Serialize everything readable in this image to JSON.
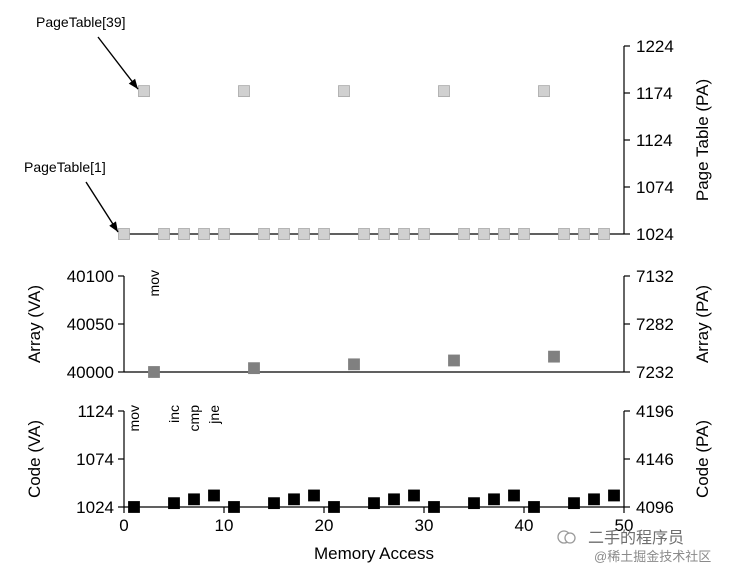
{
  "watermark": {
    "line1": "二手的程序员",
    "line2": "@稀土掘金技术社区"
  },
  "chart_data": {
    "type": "scatter",
    "xlabel": "Memory Access",
    "xlim": [
      0,
      50
    ],
    "xticks": [
      0,
      10,
      20,
      30,
      40,
      50
    ],
    "panels": [
      {
        "id": "page-table",
        "left_label": "",
        "right_label": "Page Table (PA)",
        "right_ylim": [
          1024,
          1224
        ],
        "right_ticks": [
          1024,
          1074,
          1124,
          1174,
          1224
        ],
        "marker_color": "#d0d0d0",
        "series": [
          {
            "x": [
              0,
              4,
              6,
              8,
              10,
              14,
              16,
              18,
              20,
              24,
              26,
              28,
              30,
              34,
              36,
              38,
              40,
              44,
              46,
              48
            ],
            "y": [
              1024,
              1024,
              1024,
              1024,
              1024,
              1024,
              1024,
              1024,
              1024,
              1024,
              1024,
              1024,
              1024,
              1024,
              1024,
              1024,
              1024,
              1024,
              1024,
              1024
            ]
          },
          {
            "x": [
              2,
              12,
              22,
              32,
              42
            ],
            "y": [
              1176,
              1176,
              1176,
              1176,
              1176
            ]
          }
        ],
        "annotations": [
          {
            "text": "PageTable[39]",
            "points_to": [
              2,
              1176
            ]
          },
          {
            "text": "PageTable[1]",
            "points_to": [
              0,
              1024
            ]
          }
        ]
      },
      {
        "id": "array",
        "left_label": "Array (VA)",
        "left_ylim": [
          40000,
          40100
        ],
        "left_ticks": [
          40000,
          40050,
          40100
        ],
        "right_label": "Array (PA)",
        "right_tick_labels": [
          "7232",
          "7282",
          "7132"
        ],
        "marker_color": "#808080",
        "series": [
          {
            "x": [
              3,
              13,
              23,
              33,
              43
            ],
            "y": [
              40000,
              40004,
              40008,
              40012,
              40016
            ]
          }
        ],
        "instructions": [
          {
            "text": "mov",
            "x": 3
          }
        ]
      },
      {
        "id": "code",
        "left_label": "Code (VA)",
        "left_ylim": [
          1024,
          1124
        ],
        "left_ticks": [
          1024,
          1074,
          1124
        ],
        "right_label": "Code (PA)",
        "right_tick_labels": [
          "4096",
          "4146",
          "4196"
        ],
        "marker_color": "#000000",
        "series": [
          {
            "x": [
              1,
              5,
              7,
              9,
              11,
              15,
              17,
              19,
              21,
              25,
              27,
              29,
              31,
              35,
              37,
              39,
              41,
              45,
              47,
              49
            ],
            "y": [
              1024,
              1028,
              1032,
              1036,
              1024,
              1028,
              1032,
              1036,
              1024,
              1028,
              1032,
              1036,
              1024,
              1028,
              1032,
              1036,
              1024,
              1028,
              1032,
              1036
            ]
          }
        ],
        "instructions": [
          {
            "text": "mov",
            "x": 1
          },
          {
            "text": "inc",
            "x": 5
          },
          {
            "text": "cmp",
            "x": 7
          },
          {
            "text": "jne",
            "x": 9
          }
        ]
      }
    ]
  }
}
